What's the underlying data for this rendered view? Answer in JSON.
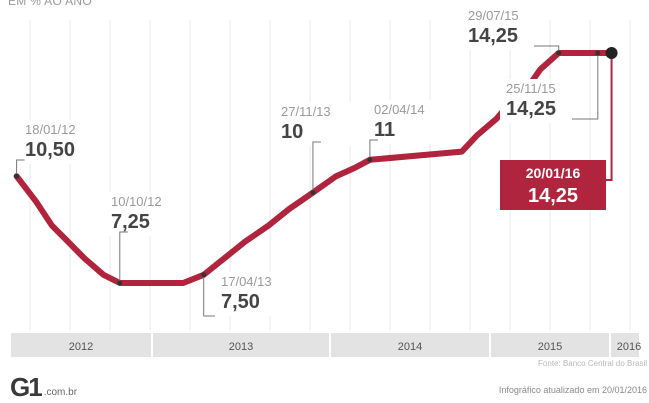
{
  "subtitle": "EM % AO ANO",
  "source": "Fonte: Banco Central do Brasil",
  "updated": "Infográfico atualizado em 20/01/2016",
  "logo": {
    "mark": "G1",
    "domain": ".com.br"
  },
  "colors": {
    "line": "#b0253d",
    "highlight_box": "#b0253d",
    "grid": "#e8e8e8",
    "axis_band": "#e3e3e3",
    "date_text": "#9a9a9a",
    "value_text": "#444444"
  },
  "chart_data": {
    "type": "line",
    "x_categories": [
      "2012",
      "2013",
      "2014",
      "2015",
      "2016"
    ],
    "series": [
      {
        "values": [
          {
            "date": "2012-01-18",
            "y": 10.5
          },
          {
            "date": "2012-03-07",
            "y": 9.75
          },
          {
            "date": "2012-04-18",
            "y": 9.0
          },
          {
            "date": "2012-05-30",
            "y": 8.5
          },
          {
            "date": "2012-07-11",
            "y": 8.0
          },
          {
            "date": "2012-08-29",
            "y": 7.5
          },
          {
            "date": "2012-10-10",
            "y": 7.25
          },
          {
            "date": "2013-03-06",
            "y": 7.25
          },
          {
            "date": "2013-04-17",
            "y": 7.5
          },
          {
            "date": "2013-05-29",
            "y": 8.0
          },
          {
            "date": "2013-07-10",
            "y": 8.5
          },
          {
            "date": "2013-08-28",
            "y": 9.0
          },
          {
            "date": "2013-10-09",
            "y": 9.5
          },
          {
            "date": "2013-11-27",
            "y": 10.0
          },
          {
            "date": "2014-01-15",
            "y": 10.5
          },
          {
            "date": "2014-02-26",
            "y": 10.75
          },
          {
            "date": "2014-04-02",
            "y": 11.0
          },
          {
            "date": "2014-10-29",
            "y": 11.25
          },
          {
            "date": "2014-12-03",
            "y": 11.75
          },
          {
            "date": "2015-01-21",
            "y": 12.25
          },
          {
            "date": "2015-03-04",
            "y": 12.75
          },
          {
            "date": "2015-04-29",
            "y": 13.25
          },
          {
            "date": "2015-06-03",
            "y": 13.75
          },
          {
            "date": "2015-07-29",
            "y": 14.25
          },
          {
            "date": "2016-01-20",
            "y": 14.25
          }
        ]
      }
    ],
    "annotations": [
      {
        "date_label": "18/01/12",
        "value_label": "10,50",
        "date": "2012-01-18",
        "y": 10.5,
        "highlight": false
      },
      {
        "date_label": "10/10/12",
        "value_label": "7,25",
        "date": "2012-10-10",
        "y": 7.25,
        "highlight": false
      },
      {
        "date_label": "17/04/13",
        "value_label": "7,50",
        "date": "2013-04-17",
        "y": 7.5,
        "highlight": false
      },
      {
        "date_label": "27/11/13",
        "value_label": "10",
        "date": "2013-11-27",
        "y": 10.0,
        "highlight": false
      },
      {
        "date_label": "02/04/14",
        "value_label": "11",
        "date": "2014-04-02",
        "y": 11.0,
        "highlight": false
      },
      {
        "date_label": "29/07/15",
        "value_label": "14,25",
        "date": "2015-07-29",
        "y": 14.25,
        "highlight": false
      },
      {
        "date_label": "25/11/15",
        "value_label": "14,25",
        "date": "2015-11-25",
        "y": 14.25,
        "highlight": false
      },
      {
        "date_label": "20/01/16",
        "value_label": "14,25",
        "date": "2016-01-20",
        "y": 14.25,
        "highlight": true
      }
    ],
    "grid": true
  }
}
